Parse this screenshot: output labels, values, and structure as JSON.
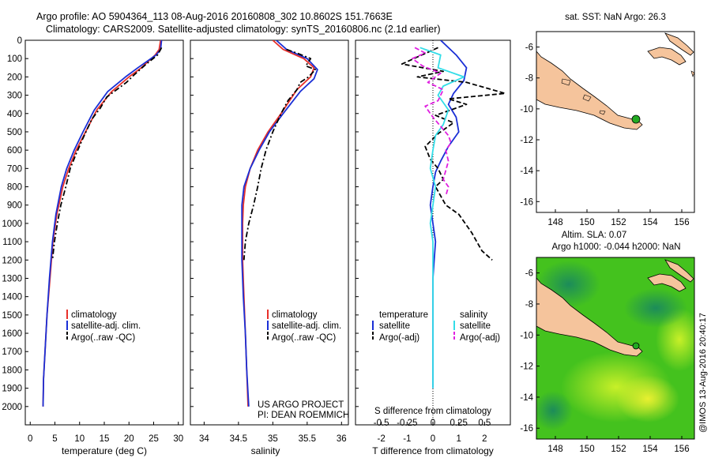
{
  "header": {
    "line1": "Argo profile: AO 5904364_113 08-Aug-2016 20160808_302 10.8602S 151.7663E",
    "line2": "Climatology: CARS2009. Satellite-adjusted climatology: synTS_20160806.nc (2.1d earlier)"
  },
  "colors": {
    "clim": "#e8302a",
    "sat": "#1a2fd6",
    "argo": "#000000",
    "sal_sat": "#33dde8",
    "sal_argo": "#e020e0",
    "land": "#f5c49c",
    "marker": "#22aa22"
  },
  "credit": "@IMOS 13-Aug-2016 20:40:17",
  "chart_data": [
    {
      "id": "temp",
      "type": "line",
      "xlabel": "temperature (deg C)",
      "xlim": [
        -1,
        31
      ],
      "ylim": [
        2100,
        0
      ],
      "xticks": [
        "0",
        "5",
        "10",
        "15",
        "20",
        "25",
        "30"
      ],
      "xtick_values": [
        0,
        5,
        10,
        15,
        20,
        25,
        30
      ],
      "yticks": [
        "0",
        "100",
        "200",
        "300",
        "400",
        "500",
        "600",
        "700",
        "800",
        "900",
        "1000",
        "1100",
        "1200",
        "1300",
        "1400",
        "1500",
        "1600",
        "1700",
        "1800",
        "1900",
        "2000"
      ],
      "legend": [
        "climatology",
        "satellite-adj. clim.",
        "Argo(..raw -QC)"
      ],
      "series": [
        {
          "name": "climatology",
          "style": "solid",
          "color": "#e8302a",
          "points": [
            [
              26.4,
              0
            ],
            [
              26.1,
              50
            ],
            [
              25.3,
              80
            ],
            [
              22.5,
              150
            ],
            [
              20,
              200
            ],
            [
              16.5,
              280
            ],
            [
              13.5,
              380
            ],
            [
              11.2,
              500
            ],
            [
              9.3,
              600
            ],
            [
              7.8,
              700
            ],
            [
              6.6,
              800
            ],
            [
              5.4,
              950
            ],
            [
              4.6,
              1100
            ],
            [
              4.0,
              1300
            ],
            [
              3.4,
              1500
            ],
            [
              3.0,
              1700
            ],
            [
              2.7,
              1850
            ],
            [
              2.6,
              2000
            ]
          ]
        },
        {
          "name": "satellite-adj. clim.",
          "style": "solid",
          "color": "#1a2fd6",
          "points": [
            [
              26.6,
              0
            ],
            [
              26.4,
              50
            ],
            [
              25.5,
              80
            ],
            [
              21.8,
              150
            ],
            [
              19.3,
              200
            ],
            [
              15.7,
              280
            ],
            [
              13,
              380
            ],
            [
              10.7,
              500
            ],
            [
              8.9,
              600
            ],
            [
              7.4,
              700
            ],
            [
              6.3,
              800
            ],
            [
              5.2,
              950
            ],
            [
              4.5,
              1100
            ],
            [
              3.9,
              1300
            ],
            [
              3.4,
              1500
            ],
            [
              3.0,
              1700
            ],
            [
              2.7,
              1850
            ],
            [
              2.6,
              2000
            ]
          ]
        },
        {
          "name": "Argo(..raw -QC)",
          "style": "dashdot",
          "color": "#000000",
          "points": [
            [
              26.6,
              40
            ],
            [
              25.8,
              80
            ],
            [
              23.5,
              130
            ],
            [
              21,
              190
            ],
            [
              19.5,
              230
            ],
            [
              17.5,
              270
            ],
            [
              15.5,
              310
            ],
            [
              14.2,
              370
            ],
            [
              12.5,
              430
            ],
            [
              10.6,
              540
            ],
            [
              9.3,
              620
            ],
            [
              8.1,
              700
            ],
            [
              7.2,
              800
            ],
            [
              6.2,
              900
            ],
            [
              5.5,
              1000
            ],
            [
              4.9,
              1100
            ],
            [
              4.5,
              1200
            ]
          ]
        }
      ]
    },
    {
      "id": "sal",
      "type": "line",
      "xlabel": "salinity",
      "xlim": [
        33.8,
        36.1
      ],
      "ylim": [
        2100,
        0
      ],
      "xticks": [
        "34",
        "34.5",
        "35",
        "35.5",
        "36"
      ],
      "xtick_values": [
        34,
        34.5,
        35,
        35.5,
        36
      ],
      "legend": [
        "climatology",
        "satellite-adj. clim.",
        "Argo(..raw -QC)"
      ],
      "series": [
        {
          "name": "climatology",
          "style": "solid",
          "color": "#e8302a",
          "points": [
            [
              35.0,
              0
            ],
            [
              35.15,
              50
            ],
            [
              35.45,
              100
            ],
            [
              35.6,
              150
            ],
            [
              35.55,
              200
            ],
            [
              35.35,
              270
            ],
            [
              35.12,
              400
            ],
            [
              34.93,
              500
            ],
            [
              34.78,
              600
            ],
            [
              34.67,
              700
            ],
            [
              34.6,
              800
            ],
            [
              34.57,
              900
            ],
            [
              34.56,
              1000
            ],
            [
              34.56,
              1200
            ],
            [
              34.58,
              1400
            ],
            [
              34.6,
              1600
            ],
            [
              34.62,
              1800
            ],
            [
              34.64,
              2000
            ]
          ]
        },
        {
          "name": "satellite-adj. clim.",
          "style": "solid",
          "color": "#1a2fd6",
          "points": [
            [
              35.05,
              0
            ],
            [
              35.2,
              50
            ],
            [
              35.5,
              100
            ],
            [
              35.65,
              160
            ],
            [
              35.6,
              210
            ],
            [
              35.4,
              280
            ],
            [
              35.15,
              400
            ],
            [
              34.95,
              500
            ],
            [
              34.8,
              600
            ],
            [
              34.67,
              700
            ],
            [
              34.58,
              800
            ],
            [
              34.55,
              900
            ],
            [
              34.55,
              1000
            ],
            [
              34.55,
              1200
            ],
            [
              34.57,
              1400
            ],
            [
              34.6,
              1600
            ],
            [
              34.62,
              1800
            ],
            [
              34.65,
              2000
            ]
          ]
        },
        {
          "name": "Argo(..raw -QC)",
          "style": "dashdot",
          "color": "#000000",
          "points": [
            [
              35.2,
              50
            ],
            [
              35.35,
              70
            ],
            [
              35.55,
              100
            ],
            [
              35.48,
              140
            ],
            [
              35.62,
              160
            ],
            [
              35.52,
              200
            ],
            [
              35.4,
              230
            ],
            [
              35.35,
              270
            ],
            [
              35.22,
              330
            ],
            [
              35.12,
              400
            ],
            [
              35.0,
              500
            ],
            [
              34.9,
              600
            ],
            [
              34.83,
              700
            ],
            [
              34.78,
              800
            ],
            [
              34.72,
              900
            ],
            [
              34.65,
              1000
            ],
            [
              34.6,
              1100
            ],
            [
              34.58,
              1200
            ]
          ]
        }
      ],
      "annotation": [
        "US ARGO PROJECT",
        "PI: DEAN ROEMMICH"
      ]
    },
    {
      "id": "diff",
      "type": "line",
      "xlabel": "T difference from climatology",
      "xlabel_top": "S difference from climatology",
      "xlim": [
        -3,
        3
      ],
      "ylim": [
        2100,
        0
      ],
      "xticks": [
        "-2",
        "-1",
        "0",
        "1",
        "2"
      ],
      "xtick_values": [
        -2,
        -1,
        0,
        1,
        2
      ],
      "sticks": [
        "-0.5",
        "-0.25",
        "0",
        "0.25",
        "0.5"
      ],
      "stick_values": [
        -2,
        -1,
        0,
        1,
        2
      ],
      "legend_temperature": "temperature",
      "legend_salinity": "salinity",
      "legend": [
        "satellite",
        "Argo(-adj)",
        "satellite",
        "Argo(-adj)"
      ],
      "series": [
        {
          "name": "T satellite",
          "style": "solid",
          "color": "#1a2fd6",
          "points": [
            [
              0.3,
              0
            ],
            [
              0.9,
              80
            ],
            [
              1.3,
              150
            ],
            [
              1.2,
              220
            ],
            [
              0.8,
              290
            ],
            [
              0.6,
              350
            ],
            [
              0.9,
              420
            ],
            [
              1.0,
              500
            ],
            [
              0.6,
              580
            ],
            [
              0.3,
              660
            ],
            [
              0.1,
              720
            ],
            [
              0.0,
              800
            ],
            [
              -0.1,
              900
            ],
            [
              0.0,
              1000
            ],
            [
              0.1,
              1100
            ],
            [
              0.05,
              1200
            ],
            [
              0.0,
              1300
            ],
            [
              0.0,
              1400
            ],
            [
              0.0,
              1600
            ],
            [
              0.0,
              1800
            ],
            [
              0.0,
              1900
            ]
          ]
        },
        {
          "name": "T Argo(-adj)",
          "style": "dashed",
          "color": "#000000",
          "points": [
            [
              0.2,
              40
            ],
            [
              -1.2,
              130
            ],
            [
              0.4,
              170
            ],
            [
              -0.6,
              200
            ],
            [
              1.3,
              230
            ],
            [
              2.8,
              290
            ],
            [
              0.6,
              320
            ],
            [
              1.3,
              350
            ],
            [
              0.1,
              410
            ],
            [
              0.8,
              450
            ],
            [
              0.2,
              510
            ],
            [
              -0.3,
              580
            ],
            [
              -0.1,
              650
            ],
            [
              0.2,
              700
            ],
            [
              0.4,
              760
            ],
            [
              0.1,
              800
            ],
            [
              0.5,
              900
            ],
            [
              1.0,
              950
            ],
            [
              1.5,
              1050
            ],
            [
              1.9,
              1150
            ],
            [
              2.3,
              1200
            ]
          ]
        },
        {
          "name": "S satellite",
          "style": "solid",
          "color": "#33dde8",
          "points": [
            [
              -0.5,
              40
            ],
            [
              0.3,
              80
            ],
            [
              0.2,
              150
            ],
            [
              1.2,
              200
            ],
            [
              0.4,
              250
            ],
            [
              0.2,
              300
            ],
            [
              0.6,
              380
            ],
            [
              0.4,
              460
            ],
            [
              0.1,
              520
            ],
            [
              0.0,
              600
            ],
            [
              -0.1,
              700
            ],
            [
              0.1,
              800
            ],
            [
              0.0,
              900
            ],
            [
              -0.1,
              1000
            ],
            [
              0.0,
              1100
            ],
            [
              0.0,
              1300
            ],
            [
              0.0,
              1500
            ],
            [
              0.0,
              1700
            ],
            [
              0.0,
              1900
            ]
          ]
        },
        {
          "name": "S Argo(-adj)",
          "style": "dashed",
          "color": "#e020e0",
          "points": [
            [
              -0.7,
              40
            ],
            [
              -0.3,
              70
            ],
            [
              -0.8,
              100
            ],
            [
              -0.4,
              140
            ],
            [
              0.3,
              180
            ],
            [
              -0.2,
              230
            ],
            [
              0.4,
              270
            ],
            [
              0.2,
              330
            ],
            [
              -0.3,
              360
            ],
            [
              0.0,
              420
            ],
            [
              0.3,
              470
            ],
            [
              0.6,
              520
            ],
            [
              0.7,
              560
            ],
            [
              0.5,
              600
            ],
            [
              0.6,
              660
            ],
            [
              0.4,
              760
            ],
            [
              0.6,
              800
            ],
            [
              0.5,
              850
            ]
          ]
        }
      ]
    }
  ],
  "maps": {
    "sst": {
      "title": "sat. SST: NaN Argo: 26.3",
      "xticks": [
        "148",
        "150",
        "152",
        "154",
        "156"
      ],
      "yticks": [
        "-6",
        "-8",
        "-10",
        "-12",
        "-14",
        "-16"
      ]
    },
    "sla": {
      "title1": "Altim. SLA: 0.07",
      "title2": "Argo h1000: -0.044 h2000: NaN",
      "xticks": [
        "148",
        "150",
        "152",
        "154",
        "156"
      ],
      "yticks": [
        "-6",
        "-8",
        "-10",
        "-12",
        "-14",
        "-16"
      ]
    }
  }
}
